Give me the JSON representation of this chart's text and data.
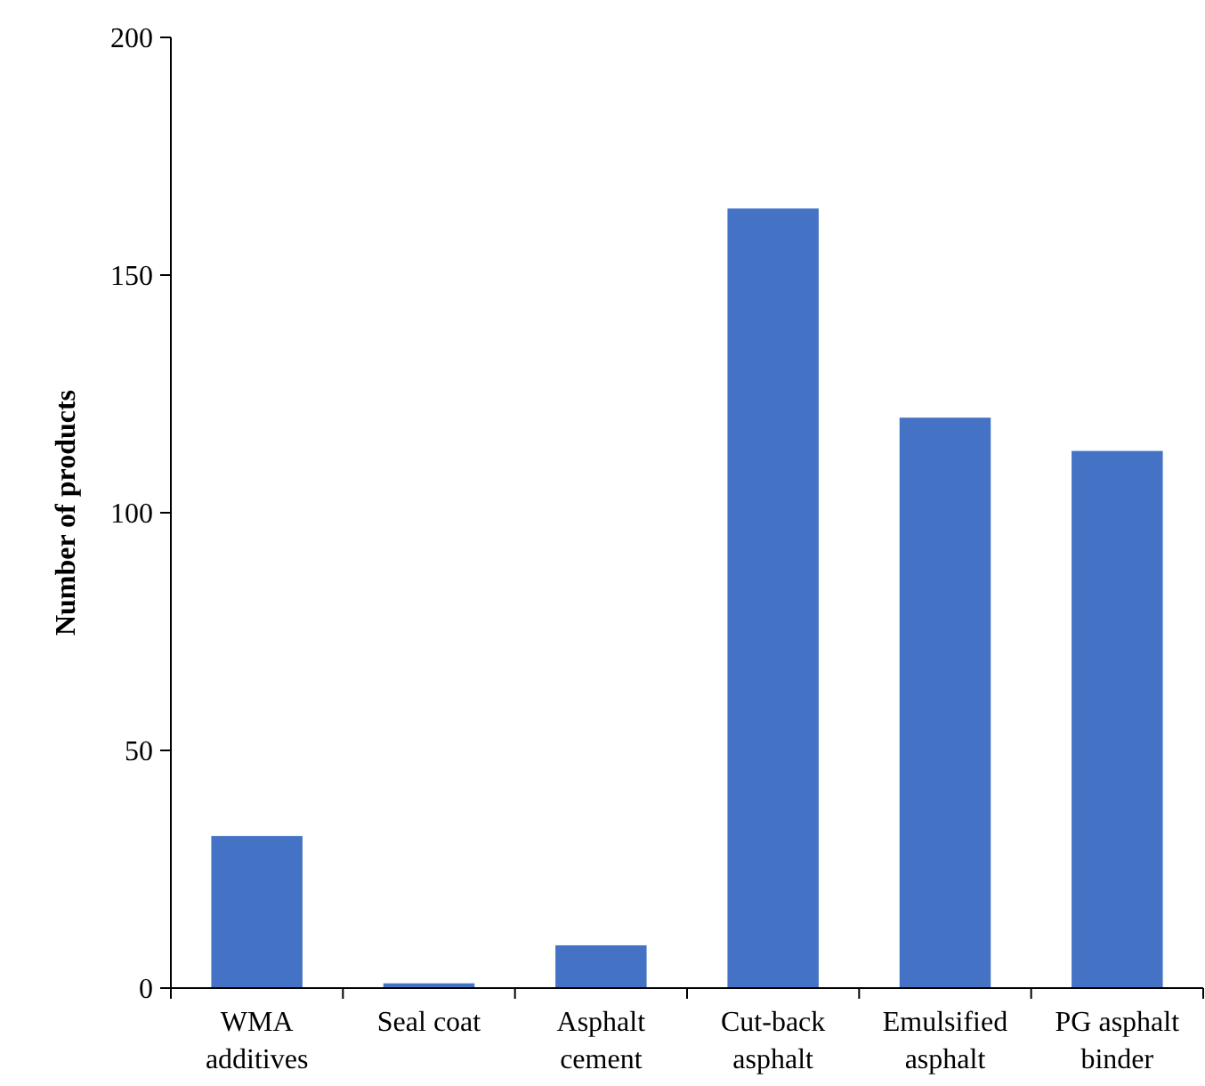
{
  "chart_data": {
    "type": "bar",
    "ylabel": "Number of products",
    "categories": [
      "WMA additives",
      "Seal coat",
      "Asphalt cement",
      "Cut-back asphalt",
      "Emulsified asphalt",
      "PG asphalt binder"
    ],
    "values": [
      32,
      1,
      9,
      164,
      120,
      113
    ],
    "color": "#4472c4",
    "ylim": [
      0,
      200
    ],
    "yticks": [
      0,
      50,
      100,
      150,
      200
    ]
  }
}
